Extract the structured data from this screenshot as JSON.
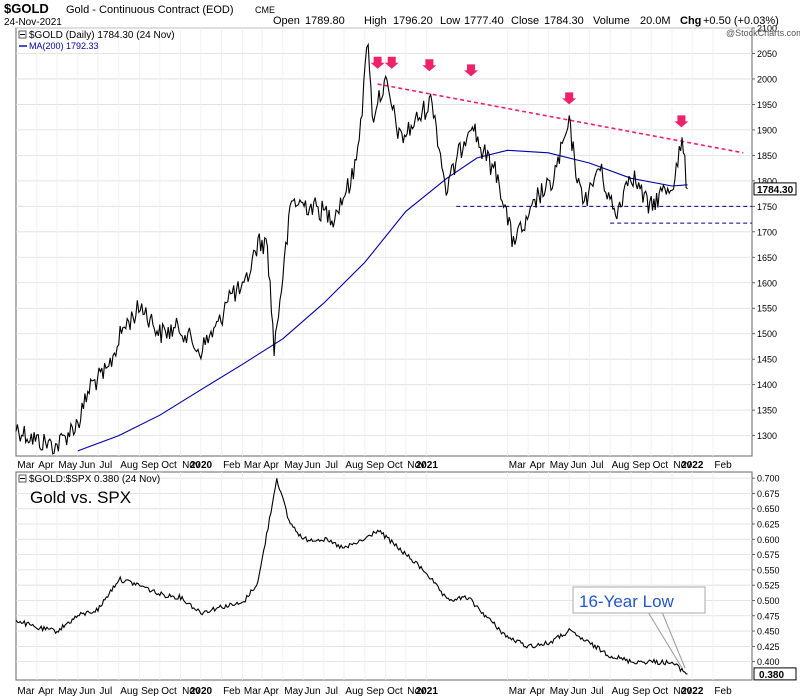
{
  "header": {
    "symbol": "$GOLD",
    "name": "Gold - Continuous Contract (EOD)",
    "exchange": "CME",
    "date": "24-Nov-2021",
    "open_label": "Open",
    "open": "1789.80",
    "high_label": "High",
    "high": "1796.20",
    "low_label": "Low",
    "low": "1777.40",
    "close_label": "Close",
    "close": "1784.30",
    "volume_label": "Volume",
    "volume": "20.0M",
    "chg_label": "Chg",
    "chg": "+0.50 (+0.03%)",
    "watermark": "@StockCharts.com"
  },
  "panels": [
    {
      "id": "price",
      "legend": [
        {
          "text": "$GOLD (Daily) 1784.30 (24 Nov)",
          "color": "#000000"
        },
        {
          "text": "MA(200) 1792.33",
          "color": "#0000aa"
        }
      ],
      "last_value_badge": "1784.30"
    },
    {
      "id": "ratio",
      "legend": [
        {
          "text": "$GOLD:$SPX 0.380 (24 Nov)",
          "color": "#000000"
        }
      ],
      "title": "Gold vs. SPX",
      "annotation": "16-Year Low",
      "last_value_badge": "0.380"
    }
  ],
  "x_axis_labels": [
    "Mar",
    "Apr",
    "May",
    "Jun",
    "Jul",
    "Aug",
    "Sep",
    "Oct",
    "Nov",
    "2020",
    "Feb",
    "Mar",
    "Apr",
    "May",
    "Jun",
    "Jul",
    "Aug",
    "Sep",
    "Oct",
    "Nov",
    "2021",
    "Mar",
    "Apr",
    "May",
    "Jun",
    "Jul",
    "Aug",
    "Sep",
    "Oct",
    "Nov",
    "2022",
    "Feb"
  ],
  "chart_data": [
    {
      "type": "line",
      "title": "$GOLD",
      "x_range": [
        "2019-03-01",
        "2022-02-28"
      ],
      "ylim": [
        1260,
        2100
      ],
      "y_ticks": [
        1300,
        1350,
        1400,
        1450,
        1500,
        1550,
        1600,
        1650,
        1700,
        1750,
        1800,
        1850,
        1900,
        1950,
        2000,
        2050,
        2100
      ],
      "grid": true,
      "legend_position": "top-left",
      "series": [
        {
          "name": "$GOLD (Daily)",
          "color": "#000000",
          "x": [
            "2019-03-01",
            "2019-04-01",
            "2019-05-01",
            "2019-06-03",
            "2019-06-20",
            "2019-07-15",
            "2019-08-07",
            "2019-09-04",
            "2019-10-01",
            "2019-11-01",
            "2019-11-29",
            "2019-12-31",
            "2020-01-08",
            "2020-02-03",
            "2020-02-24",
            "2020-03-09",
            "2020-03-19",
            "2020-04-14",
            "2020-05-15",
            "2020-06-15",
            "2020-07-15",
            "2020-07-28",
            "2020-08-06",
            "2020-08-12",
            "2020-08-20",
            "2020-09-01",
            "2020-09-23",
            "2020-10-15",
            "2020-11-09",
            "2020-11-30",
            "2021-01-06",
            "2021-01-20",
            "2021-02-15",
            "2021-03-08",
            "2021-03-31",
            "2021-04-15",
            "2021-05-05",
            "2021-06-01",
            "2021-06-17",
            "2021-06-30",
            "2021-07-15",
            "2021-08-09",
            "2021-08-31",
            "2021-09-29",
            "2021-10-15",
            "2021-11-01",
            "2021-11-16",
            "2021-11-24"
          ],
          "y": [
            1315,
            1290,
            1280,
            1330,
            1400,
            1425,
            1510,
            1555,
            1500,
            1512,
            1465,
            1525,
            1575,
            1585,
            1680,
            1675,
            1470,
            1760,
            1750,
            1730,
            1810,
            1945,
            2085,
            1920,
            1960,
            1990,
            1880,
            1915,
            1960,
            1780,
            1920,
            1865,
            1810,
            1685,
            1715,
            1770,
            1790,
            1910,
            1775,
            1770,
            1830,
            1730,
            1820,
            1745,
            1775,
            1790,
            1875,
            1784.3
          ]
        },
        {
          "name": "MA(200)",
          "color": "#0000aa",
          "x": [
            "2019-06-01",
            "2019-08-01",
            "2019-10-01",
            "2019-12-01",
            "2020-02-01",
            "2020-04-01",
            "2020-06-01",
            "2020-08-01",
            "2020-10-01",
            "2020-12-01",
            "2021-01-15",
            "2021-03-01",
            "2021-05-01",
            "2021-07-01",
            "2021-09-01",
            "2021-11-01",
            "2021-11-24"
          ],
          "y": [
            1270,
            1300,
            1340,
            1390,
            1440,
            1490,
            1560,
            1640,
            1740,
            1805,
            1845,
            1860,
            1855,
            1835,
            1805,
            1790,
            1792.33
          ]
        }
      ],
      "annotations": [
        {
          "type": "trendline",
          "style": "dashed",
          "color": "#ee2266",
          "x": [
            "2020-08-20",
            "2022-02-15"
          ],
          "y": [
            1990,
            1855
          ]
        },
        {
          "type": "horizontal-line",
          "style": "dashed",
          "color": "#000088",
          "y": 1750,
          "x_start": "2020-12-15"
        },
        {
          "type": "horizontal-line",
          "style": "dashed",
          "color": "#000088",
          "y": 1717,
          "x_start": "2021-08-01"
        },
        {
          "type": "down-arrow",
          "color": "#ee2266",
          "x": "2020-08-20",
          "y": 2020
        },
        {
          "type": "down-arrow",
          "color": "#ee2266",
          "x": "2020-09-10",
          "y": 2020
        },
        {
          "type": "down-arrow",
          "color": "#ee2266",
          "x": "2020-11-05",
          "y": 2015
        },
        {
          "type": "down-arrow",
          "color": "#ee2266",
          "x": "2021-01-06",
          "y": 2005
        },
        {
          "type": "down-arrow",
          "color": "#ee2266",
          "x": "2021-06-01",
          "y": 1950
        },
        {
          "type": "down-arrow",
          "color": "#ee2266",
          "x": "2021-11-15",
          "y": 1905
        }
      ]
    },
    {
      "type": "line",
      "title": "Gold vs. SPX",
      "x_range": [
        "2019-03-01",
        "2022-02-28"
      ],
      "ylim": [
        0.37,
        0.71
      ],
      "y_ticks": [
        0.4,
        0.425,
        0.45,
        0.475,
        0.5,
        0.525,
        0.55,
        0.575,
        0.6,
        0.625,
        0.65,
        0.675,
        0.7
      ],
      "grid": true,
      "legend_position": "top-left",
      "series": [
        {
          "name": "$GOLD:$SPX",
          "color": "#000000",
          "x": [
            "2019-03-01",
            "2019-04-01",
            "2019-05-01",
            "2019-06-01",
            "2019-07-01",
            "2019-08-01",
            "2019-09-01",
            "2019-10-01",
            "2019-11-01",
            "2019-12-01",
            "2020-01-01",
            "2020-02-01",
            "2020-02-24",
            "2020-03-10",
            "2020-03-23",
            "2020-04-10",
            "2020-05-01",
            "2020-06-01",
            "2020-07-01",
            "2020-08-01",
            "2020-08-20",
            "2020-09-10",
            "2020-10-01",
            "2020-11-01",
            "2020-12-01",
            "2021-01-01",
            "2021-02-01",
            "2021-03-01",
            "2021-04-01",
            "2021-05-01",
            "2021-06-01",
            "2021-07-01",
            "2021-08-01",
            "2021-09-01",
            "2021-10-01",
            "2021-11-01",
            "2021-11-24"
          ],
          "y": [
            0.468,
            0.455,
            0.45,
            0.475,
            0.485,
            0.535,
            0.525,
            0.51,
            0.505,
            0.48,
            0.49,
            0.495,
            0.53,
            0.62,
            0.7,
            0.63,
            0.6,
            0.6,
            0.585,
            0.6,
            0.615,
            0.595,
            0.575,
            0.545,
            0.5,
            0.505,
            0.47,
            0.44,
            0.425,
            0.43,
            0.45,
            0.43,
            0.41,
            0.4,
            0.4,
            0.398,
            0.38
          ]
        }
      ]
    }
  ]
}
